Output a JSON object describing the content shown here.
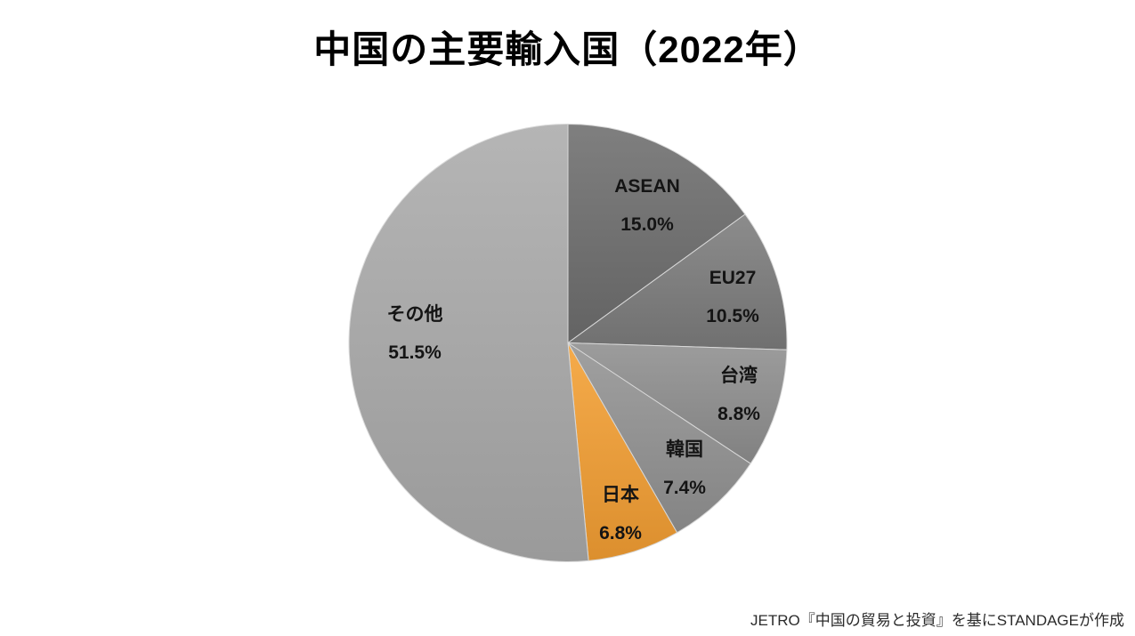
{
  "page": {
    "title": "中国の主要輸入国（2022年）",
    "source": "JETRO『中国の貿易と投資』を基にSTANDAGEが作成",
    "background_color": "#FFFFFF"
  },
  "chart_data": {
    "type": "pie",
    "title": "中国の主要輸入国（2022年）",
    "unit": "%",
    "start_angle_deg": 0,
    "direction": "clockwise",
    "legend_position": "none",
    "labels_inside_slices": true,
    "slice_border_color": "#D8D8D8",
    "highlight_color": "#F49F33",
    "slices": [
      {
        "name": "ASEAN",
        "value": 15.0,
        "pct_label": "15.0%",
        "color": "#6E6E6E",
        "highlight": false
      },
      {
        "name": "EU27",
        "value": 10.5,
        "pct_label": "10.5%",
        "color": "#7C7C7C",
        "highlight": false
      },
      {
        "name": "台湾",
        "value": 8.8,
        "pct_label": "8.8%",
        "color": "#8F8F8F",
        "highlight": false
      },
      {
        "name": "韓国",
        "value": 7.4,
        "pct_label": "7.4%",
        "color": "#939393",
        "highlight": false
      },
      {
        "name": "日本",
        "value": 6.8,
        "pct_label": "6.8%",
        "color": "#F49F33",
        "highlight": true
      },
      {
        "name": "その他",
        "value": 51.5,
        "pct_label": "51.5%",
        "color": "#ABABAB",
        "highlight": false
      }
    ]
  }
}
